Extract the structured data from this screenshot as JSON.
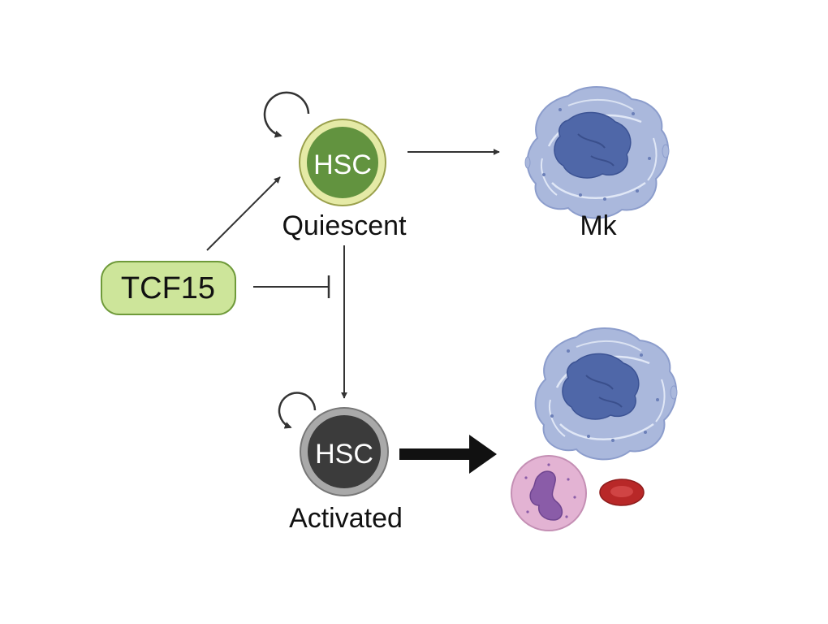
{
  "tcf15": {
    "label": "TCF15",
    "fill": "#cde59a",
    "stroke": "#6f9a3a"
  },
  "quiescent": {
    "cell_label": "HSC",
    "state_label": "Quiescent",
    "inner_color": "#62933f",
    "ring_color": "#e5eaa6"
  },
  "activated": {
    "cell_label": "HSC",
    "state_label": "Activated",
    "inner_color": "#3b3b3b",
    "ring_color": "#a9a9a9"
  },
  "mk": {
    "label": "Mk"
  },
  "colors": {
    "arrow": "#333333",
    "mk_cytoplasm": "#aab8dc",
    "mk_nucleus": "#4f67a8",
    "neutrophil_body": "#e3b3d3",
    "neutrophil_nucleus": "#8a5ca8",
    "rbc": "#b82828"
  }
}
